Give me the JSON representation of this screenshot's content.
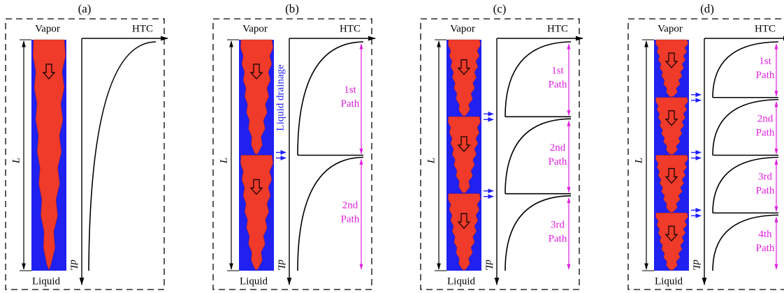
{
  "panels": [
    {
      "label": "(a)",
      "top": "Vapor",
      "axis": "HTC",
      "bottom": "Liquid",
      "length": "L",
      "dl": "dL",
      "paths": []
    },
    {
      "label": "(b)",
      "top": "Vapor",
      "axis": "HTC",
      "bottom": "Liquid",
      "length": "L",
      "dl": "dL",
      "drainage": "Liquid drainage",
      "paths": [
        [
          "1st",
          "Path"
        ],
        [
          "2nd",
          "Path"
        ]
      ]
    },
    {
      "label": "(c)",
      "top": "Vapor",
      "axis": "HTC",
      "bottom": "Liquid",
      "length": "L",
      "dl": "dL",
      "paths": [
        [
          "1st",
          "Path"
        ],
        [
          "2nd",
          "Path"
        ],
        [
          "3rd",
          "Path"
        ]
      ]
    },
    {
      "label": "(d)",
      "top": "Vapor",
      "axis": "HTC",
      "bottom": "Liquid",
      "length": "L",
      "dl": "dL",
      "paths": [
        [
          "1st",
          "Path"
        ],
        [
          "2nd",
          "Path"
        ],
        [
          "3rd",
          "Path"
        ],
        [
          "4th",
          "Path"
        ]
      ]
    }
  ]
}
